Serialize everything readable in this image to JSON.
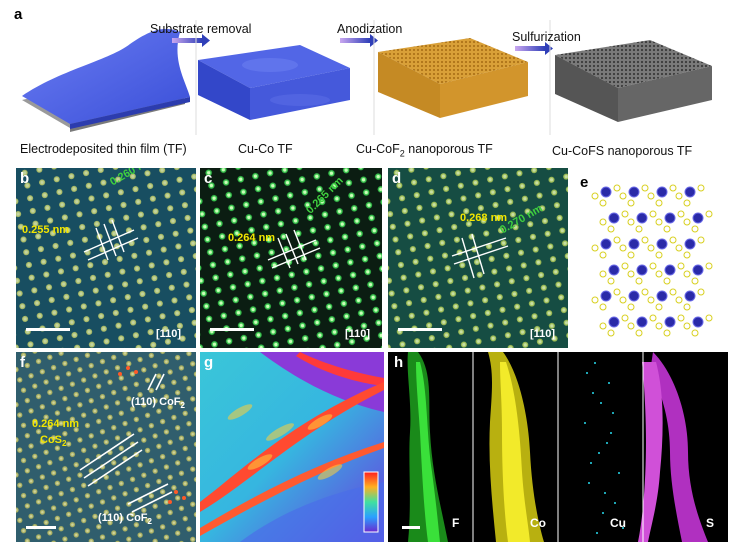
{
  "panels": {
    "a": {
      "label": "a",
      "arrows": [
        "Substrate removal",
        "Anodization",
        "Sulfurization"
      ],
      "captions": [
        "Electrodeposited thin film (TF)",
        "Cu-Co TF",
        "Cu-CoF",
        "2",
        " nanoporous TF",
        "Cu-CoFS nanoporous TF"
      ]
    },
    "b": {
      "label": "b",
      "d1": "0.255 nm",
      "d2": "0.260 nm",
      "zone": "[110]"
    },
    "c": {
      "label": "c",
      "d1": "0.264 nm",
      "d2": "0.265 nm",
      "zone": "[110]"
    },
    "d": {
      "label": "d",
      "d1": "0.268 nm",
      "d2": "0.270 nm",
      "zone": "[110]"
    },
    "e": {
      "label": "e"
    },
    "f": {
      "label": "f",
      "top_label": "(110) CoF",
      "top_sub": "2",
      "spacing": "0.264 nm",
      "cos": "CoS",
      "cos_sub": "2",
      "bottom_label": "(110) CoF",
      "bottom_sub": "2"
    },
    "g": {
      "label": "g"
    },
    "h": {
      "label": "h",
      "elements": [
        "F",
        "Co",
        "Cu",
        "S"
      ]
    }
  },
  "colors": {
    "tf_blue": "#4a5ee0",
    "cof2_orange": "#d9a038",
    "cofs_gray": "#6d6d6d",
    "hr_label_yellow": "#f2e600",
    "hr_label_green": "#3fcf3f",
    "map_F": "#29c12a",
    "map_Co": "#e8df1b",
    "map_Cu": "#22b8c8",
    "map_S": "#c53cc6"
  }
}
